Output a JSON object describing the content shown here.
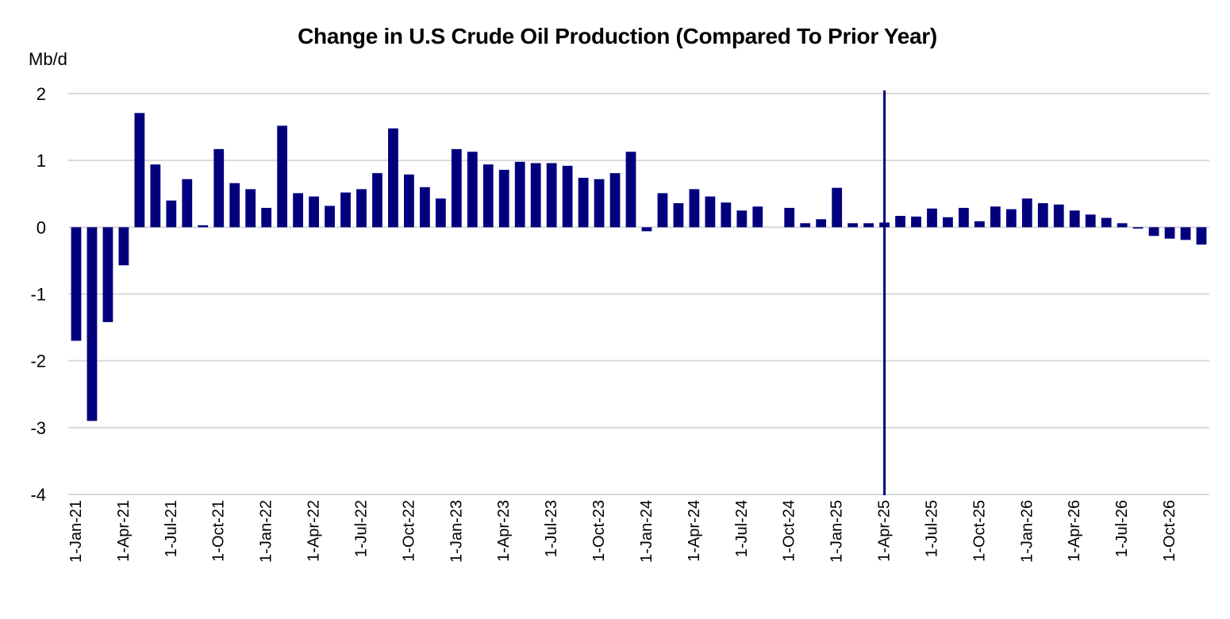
{
  "chart_data": {
    "type": "bar",
    "title": "Change in U.S Crude Oil Production (Compared To Prior Year)",
    "ylabel": "Mb/d",
    "xlabel": "",
    "ylim": [
      -4,
      2
    ],
    "yticks": [
      "2",
      "1",
      "0",
      "-1",
      "-2",
      "-3",
      "-4"
    ],
    "grid": true,
    "legend": "none",
    "bar_color": "#00007F",
    "marker_line": {
      "x": "1-Apr-25",
      "color": "#00007F"
    },
    "categories": [
      "1-Jan-21",
      "1-Feb-21",
      "1-Mar-21",
      "1-Apr-21",
      "1-May-21",
      "1-Jun-21",
      "1-Jul-21",
      "1-Aug-21",
      "1-Sep-21",
      "1-Oct-21",
      "1-Nov-21",
      "1-Dec-21",
      "1-Jan-22",
      "1-Feb-22",
      "1-Mar-22",
      "1-Apr-22",
      "1-May-22",
      "1-Jun-22",
      "1-Jul-22",
      "1-Aug-22",
      "1-Sep-22",
      "1-Oct-22",
      "1-Nov-22",
      "1-Dec-22",
      "1-Jan-23",
      "1-Feb-23",
      "1-Mar-23",
      "1-Apr-23",
      "1-May-23",
      "1-Jun-23",
      "1-Jul-23",
      "1-Aug-23",
      "1-Sep-23",
      "1-Oct-23",
      "1-Nov-23",
      "1-Dec-23",
      "1-Jan-24",
      "1-Feb-24",
      "1-Mar-24",
      "1-Apr-24",
      "1-May-24",
      "1-Jun-24",
      "1-Jul-24",
      "1-Aug-24",
      "1-Sep-24",
      "1-Oct-24",
      "1-Nov-24",
      "1-Dec-24",
      "1-Jan-25",
      "1-Feb-25",
      "1-Mar-25",
      "1-Apr-25",
      "1-May-25",
      "1-Jun-25",
      "1-Jul-25",
      "1-Aug-25",
      "1-Sep-25",
      "1-Oct-25",
      "1-Nov-25",
      "1-Dec-25",
      "1-Jan-26",
      "1-Feb-26",
      "1-Mar-26",
      "1-Apr-26",
      "1-May-26",
      "1-Jun-26",
      "1-Jul-26",
      "1-Aug-26",
      "1-Sep-26",
      "1-Oct-26",
      "1-Nov-26",
      "1-Dec-26"
    ],
    "xtick_labels": [
      "1-Jan-21",
      "1-Apr-21",
      "1-Jul-21",
      "1-Oct-21",
      "1-Jan-22",
      "1-Apr-22",
      "1-Jul-22",
      "1-Oct-22",
      "1-Jan-23",
      "1-Apr-23",
      "1-Jul-23",
      "1-Oct-23",
      "1-Jan-24",
      "1-Apr-24",
      "1-Jul-24",
      "1-Oct-24",
      "1-Jan-25",
      "1-Apr-25",
      "1-Jul-25",
      "1-Oct-25",
      "1-Jan-26",
      "1-Apr-26",
      "1-Jul-26",
      "1-Oct-26"
    ],
    "values": [
      -1.7,
      -2.9,
      -1.42,
      -0.57,
      1.71,
      0.94,
      0.4,
      0.72,
      0.03,
      1.17,
      0.66,
      0.57,
      0.29,
      1.52,
      0.51,
      0.46,
      0.32,
      0.52,
      0.57,
      0.81,
      1.48,
      0.79,
      0.6,
      0.43,
      1.17,
      1.13,
      0.94,
      0.86,
      0.98,
      0.96,
      0.96,
      0.92,
      0.74,
      0.72,
      0.81,
      1.13,
      -0.06,
      0.51,
      0.36,
      0.57,
      0.46,
      0.37,
      0.25,
      0.31,
      0.0,
      0.29,
      0.06,
      0.12,
      0.59,
      0.06,
      0.06,
      0.07,
      0.17,
      0.16,
      0.28,
      0.15,
      0.29,
      0.09,
      0.31,
      0.27,
      0.43,
      0.36,
      0.34,
      0.25,
      0.19,
      0.14,
      0.06,
      -0.02,
      -0.13,
      -0.17,
      -0.19,
      -0.26
    ]
  }
}
